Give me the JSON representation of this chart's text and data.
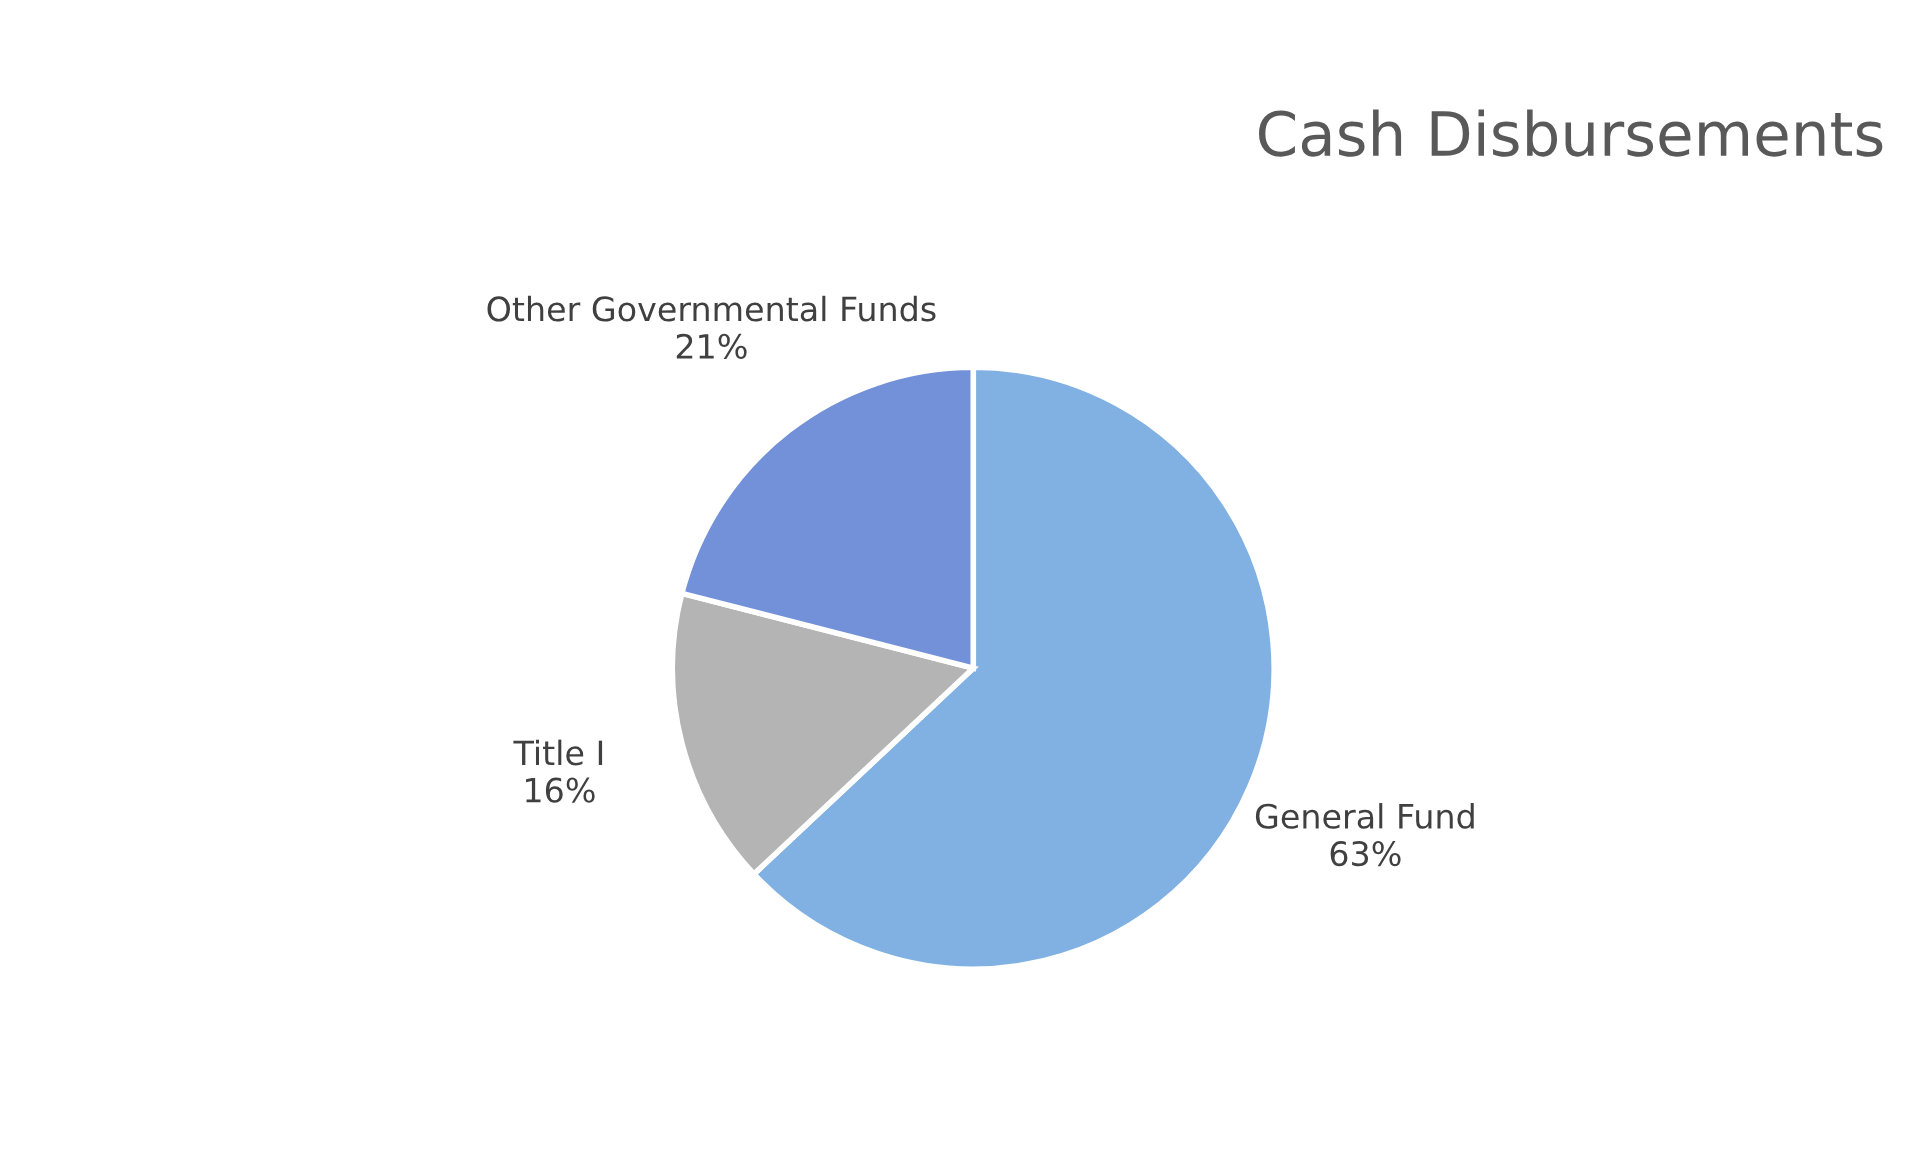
{
  "chart_data": {
    "type": "pie",
    "title": "Cash Disbursements",
    "categories": [
      "General Fund",
      "Title I",
      "Other Governmental Funds"
    ],
    "values": [
      63,
      16,
      21
    ],
    "colors": [
      "#80b1e2",
      "#b4b4b4",
      "#7391d8"
    ],
    "value_labels": [
      "63%",
      "16%",
      "21%"
    ]
  }
}
